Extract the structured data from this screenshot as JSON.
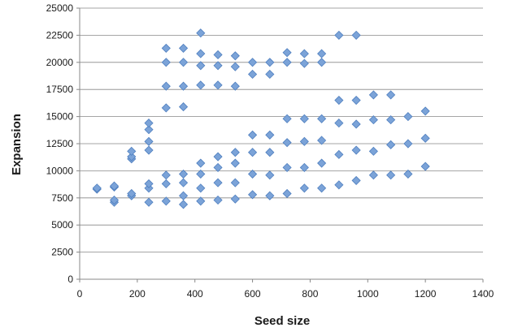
{
  "chart_data": {
    "type": "scatter",
    "title": "",
    "xlabel": "Seed size",
    "ylabel": "Expansion",
    "xlim": [
      0,
      1400
    ],
    "ylim": [
      0,
      25000
    ],
    "x_ticks": [
      0,
      200,
      400,
      600,
      800,
      1000,
      1200,
      1400
    ],
    "y_ticks": [
      0,
      2500,
      5000,
      7500,
      10000,
      12500,
      15000,
      17500,
      20000,
      22500,
      25000
    ],
    "x_tick_labels": [
      "0",
      "200",
      "400",
      "600",
      "800",
      "1000",
      "1200",
      "1400"
    ],
    "y_tick_labels": [
      "0",
      "2500",
      "5000",
      "7500",
      "10000",
      "12500",
      "15000",
      "17500",
      "20000",
      "22500",
      "25000"
    ],
    "grid": "horizontal",
    "legend": "none",
    "marker": "diamond",
    "marker_color": "#7BA3D8",
    "marker_edge_color": "#4F7FBF",
    "series": [
      {
        "points": [
          [
            60,
            8300
          ],
          [
            60,
            8400
          ],
          [
            120,
            7100
          ],
          [
            120,
            7300
          ],
          [
            120,
            8500
          ],
          [
            120,
            8600
          ],
          [
            180,
            7700
          ],
          [
            180,
            7900
          ],
          [
            180,
            11100
          ],
          [
            180,
            11300
          ],
          [
            180,
            11800
          ],
          [
            240,
            7100
          ],
          [
            240,
            8400
          ],
          [
            240,
            8800
          ],
          [
            240,
            11900
          ],
          [
            240,
            12700
          ],
          [
            240,
            13800
          ],
          [
            240,
            14400
          ],
          [
            300,
            7200
          ],
          [
            300,
            8800
          ],
          [
            300,
            9600
          ],
          [
            300,
            15800
          ],
          [
            300,
            17800
          ],
          [
            300,
            20000
          ],
          [
            300,
            21300
          ],
          [
            360,
            6900
          ],
          [
            360,
            7700
          ],
          [
            360,
            8900
          ],
          [
            360,
            9700
          ],
          [
            360,
            15900
          ],
          [
            360,
            17800
          ],
          [
            360,
            20000
          ],
          [
            360,
            21300
          ],
          [
            420,
            7200
          ],
          [
            420,
            8400
          ],
          [
            420,
            9700
          ],
          [
            420,
            10700
          ],
          [
            420,
            17900
          ],
          [
            420,
            19700
          ],
          [
            420,
            20800
          ],
          [
            420,
            22700
          ],
          [
            480,
            7300
          ],
          [
            480,
            8900
          ],
          [
            480,
            10300
          ],
          [
            480,
            11300
          ],
          [
            480,
            17900
          ],
          [
            480,
            19700
          ],
          [
            480,
            20700
          ],
          [
            540,
            7400
          ],
          [
            540,
            8900
          ],
          [
            540,
            10700
          ],
          [
            540,
            11700
          ],
          [
            540,
            17800
          ],
          [
            540,
            19600
          ],
          [
            540,
            20600
          ],
          [
            600,
            7800
          ],
          [
            600,
            9700
          ],
          [
            600,
            11700
          ],
          [
            600,
            13300
          ],
          [
            600,
            18900
          ],
          [
            600,
            20000
          ],
          [
            660,
            7700
          ],
          [
            660,
            9600
          ],
          [
            660,
            11700
          ],
          [
            660,
            13300
          ],
          [
            660,
            18900
          ],
          [
            660,
            20000
          ],
          [
            720,
            7900
          ],
          [
            720,
            10300
          ],
          [
            720,
            12600
          ],
          [
            720,
            14800
          ],
          [
            720,
            20000
          ],
          [
            720,
            20900
          ],
          [
            780,
            8400
          ],
          [
            780,
            10300
          ],
          [
            780,
            12700
          ],
          [
            780,
            14800
          ],
          [
            780,
            19900
          ],
          [
            780,
            20800
          ],
          [
            840,
            8400
          ],
          [
            840,
            10700
          ],
          [
            840,
            12800
          ],
          [
            840,
            14800
          ],
          [
            840,
            20000
          ],
          [
            840,
            20800
          ],
          [
            900,
            8700
          ],
          [
            900,
            11500
          ],
          [
            900,
            14400
          ],
          [
            900,
            16500
          ],
          [
            900,
            22500
          ],
          [
            960,
            9100
          ],
          [
            960,
            11900
          ],
          [
            960,
            14300
          ],
          [
            960,
            16500
          ],
          [
            960,
            22500
          ],
          [
            1020,
            9600
          ],
          [
            1020,
            11800
          ],
          [
            1020,
            14700
          ],
          [
            1020,
            17000
          ],
          [
            1080,
            9600
          ],
          [
            1080,
            12400
          ],
          [
            1080,
            14700
          ],
          [
            1080,
            17000
          ],
          [
            1140,
            9700
          ],
          [
            1140,
            12500
          ],
          [
            1140,
            15000
          ],
          [
            1200,
            10400
          ],
          [
            1200,
            13000
          ],
          [
            1200,
            15500
          ]
        ]
      }
    ]
  }
}
